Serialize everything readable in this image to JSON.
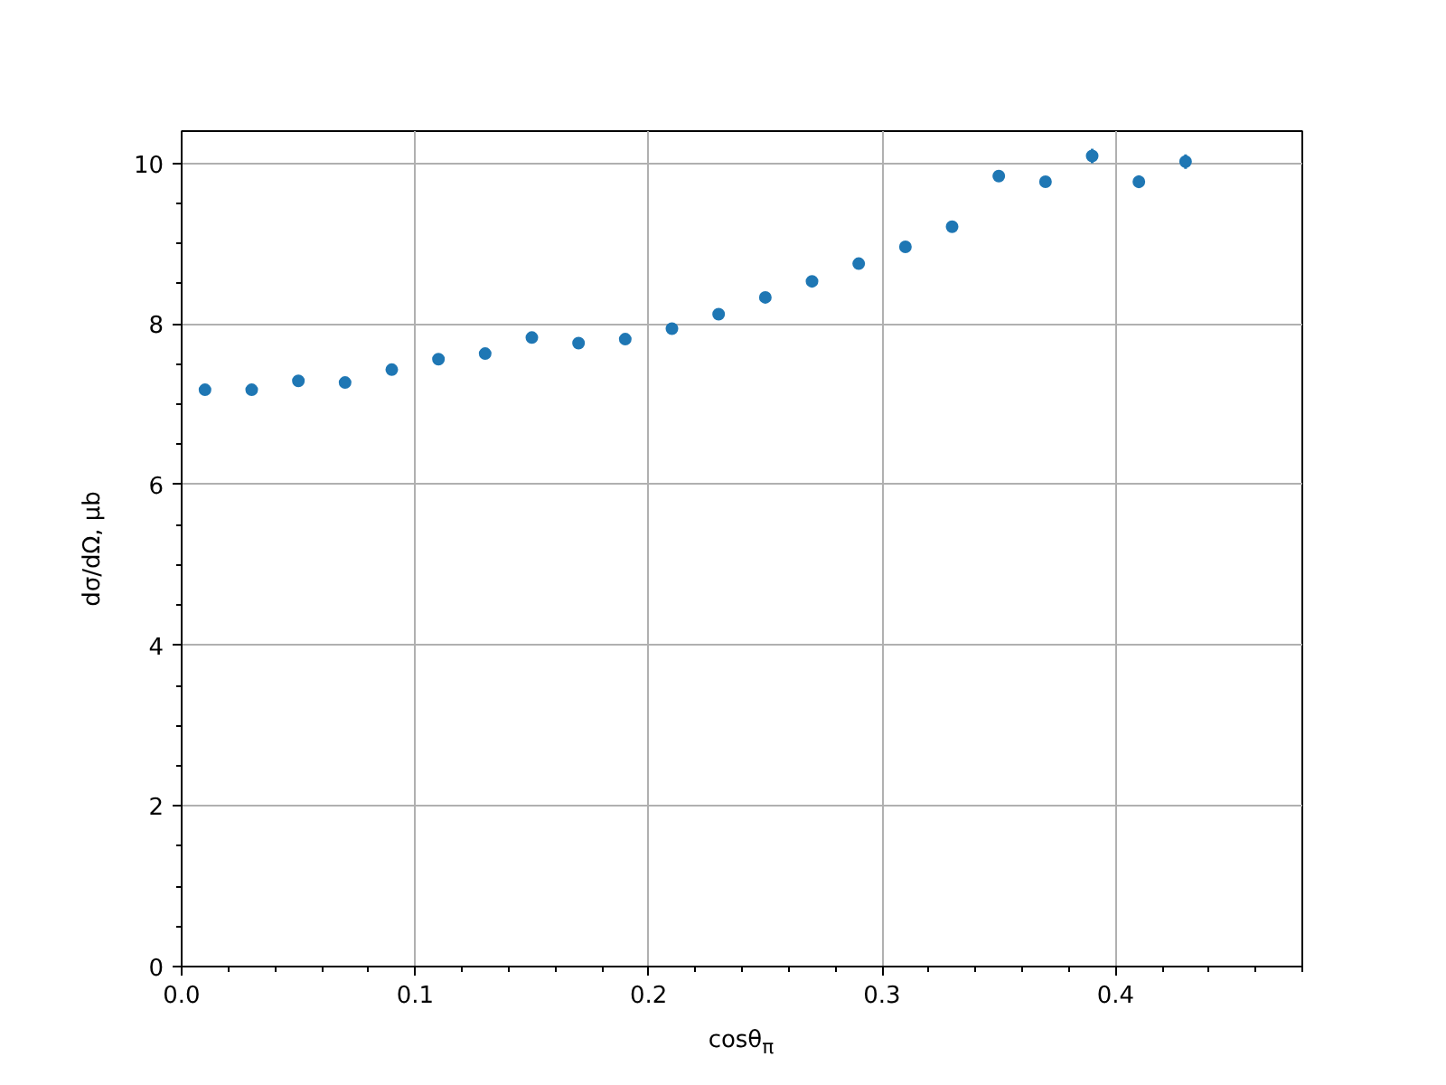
{
  "chart_data": {
    "type": "scatter",
    "xlabel": "cosθ$_{π}$",
    "ylabel": "dσ/dΩ, μb",
    "x": [
      0.01,
      0.03,
      0.05,
      0.07,
      0.09,
      0.11,
      0.13,
      0.15,
      0.17,
      0.19,
      0.21,
      0.23,
      0.25,
      0.27,
      0.29,
      0.31,
      0.33,
      0.35,
      0.37,
      0.39,
      0.41,
      0.43
    ],
    "values": [
      7.18,
      7.18,
      7.29,
      7.27,
      7.43,
      7.56,
      7.63,
      7.83,
      7.76,
      7.81,
      7.94,
      8.12,
      8.33,
      8.53,
      8.75,
      8.96,
      9.21,
      9.84,
      9.77,
      10.09,
      9.77,
      10.02
    ],
    "errors": [
      0.04,
      0.04,
      0.04,
      0.04,
      0.04,
      0.04,
      0.04,
      0.04,
      0.04,
      0.04,
      0.04,
      0.06,
      0.06,
      0.05,
      0.07,
      0.05,
      0.07,
      0.07,
      0.06,
      0.09,
      0.08,
      0.09
    ],
    "color": "#1f77b4",
    "marker": "circle",
    "xlim": [
      0,
      0.48
    ],
    "ylim": [
      0,
      10.4
    ],
    "xticks": [
      {
        "value": 0,
        "label": "0.0"
      },
      {
        "value": 0.1,
        "label": "0.1"
      },
      {
        "value": 0.2,
        "label": "0.2"
      },
      {
        "value": 0.3,
        "label": "0.3"
      },
      {
        "value": 0.4,
        "label": "0.4"
      }
    ],
    "yticks": [
      0,
      2,
      4,
      6,
      8,
      10
    ],
    "grid": true
  }
}
